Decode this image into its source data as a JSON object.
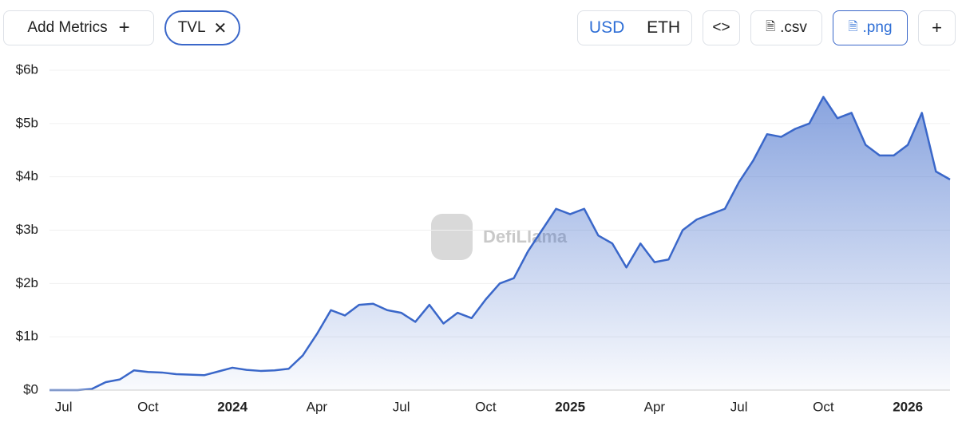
{
  "toolbar": {
    "add_metrics": "Add Metrics",
    "metric": "TVL",
    "currency_options": [
      "USD",
      "ETH"
    ],
    "csv": ".csv",
    "png": ".png"
  },
  "watermark": "DefiLlama",
  "chart_data": {
    "type": "area",
    "color": "#3a67c9",
    "categories": [
      null,
      "Jul",
      null,
      null,
      null,
      null,
      null,
      "Oct",
      null,
      null,
      null,
      null,
      null,
      "2024",
      null,
      null,
      null,
      null,
      null,
      "Apr",
      null,
      null,
      null,
      null,
      null,
      "Jul",
      null,
      null,
      null,
      null,
      null,
      "Oct",
      null,
      null,
      null,
      null,
      null,
      "2025",
      null,
      null,
      null,
      null,
      null,
      "Apr",
      null,
      null,
      null,
      null,
      null,
      "Jul",
      null,
      null,
      null,
      null,
      null,
      "Oct",
      null,
      null,
      null,
      null,
      null,
      "2026",
      null,
      null,
      null
    ],
    "values": [
      0,
      0,
      0,
      0.02,
      0.15,
      0.2,
      0.37,
      0.34,
      0.33,
      0.3,
      0.29,
      0.28,
      0.35,
      0.42,
      0.38,
      0.36,
      0.37,
      0.4,
      0.65,
      1.05,
      1.5,
      1.4,
      1.6,
      1.62,
      1.5,
      1.45,
      1.28,
      1.6,
      1.25,
      1.45,
      1.35,
      1.7,
      2.0,
      2.1,
      2.6,
      3.0,
      3.4,
      3.3,
      3.4,
      2.9,
      2.75,
      2.3,
      2.75,
      2.4,
      2.45,
      3.0,
      3.2,
      3.3,
      3.4,
      3.9,
      4.3,
      4.8,
      4.75,
      4.9,
      5.0,
      5.5,
      5.1,
      5.2,
      4.6,
      4.4,
      4.4,
      4.6,
      5.2,
      4.1,
      3.95
    ],
    "ylim": [
      0,
      6
    ],
    "yticks": [
      {
        "value": 0,
        "label": "$0"
      },
      {
        "value": 1,
        "label": "$1b"
      },
      {
        "value": 2,
        "label": "$2b"
      },
      {
        "value": 3,
        "label": "$3b"
      },
      {
        "value": 4,
        "label": "$4b"
      },
      {
        "value": 5,
        "label": "$5b"
      },
      {
        "value": 6,
        "label": "$6b"
      }
    ],
    "grid": true
  }
}
